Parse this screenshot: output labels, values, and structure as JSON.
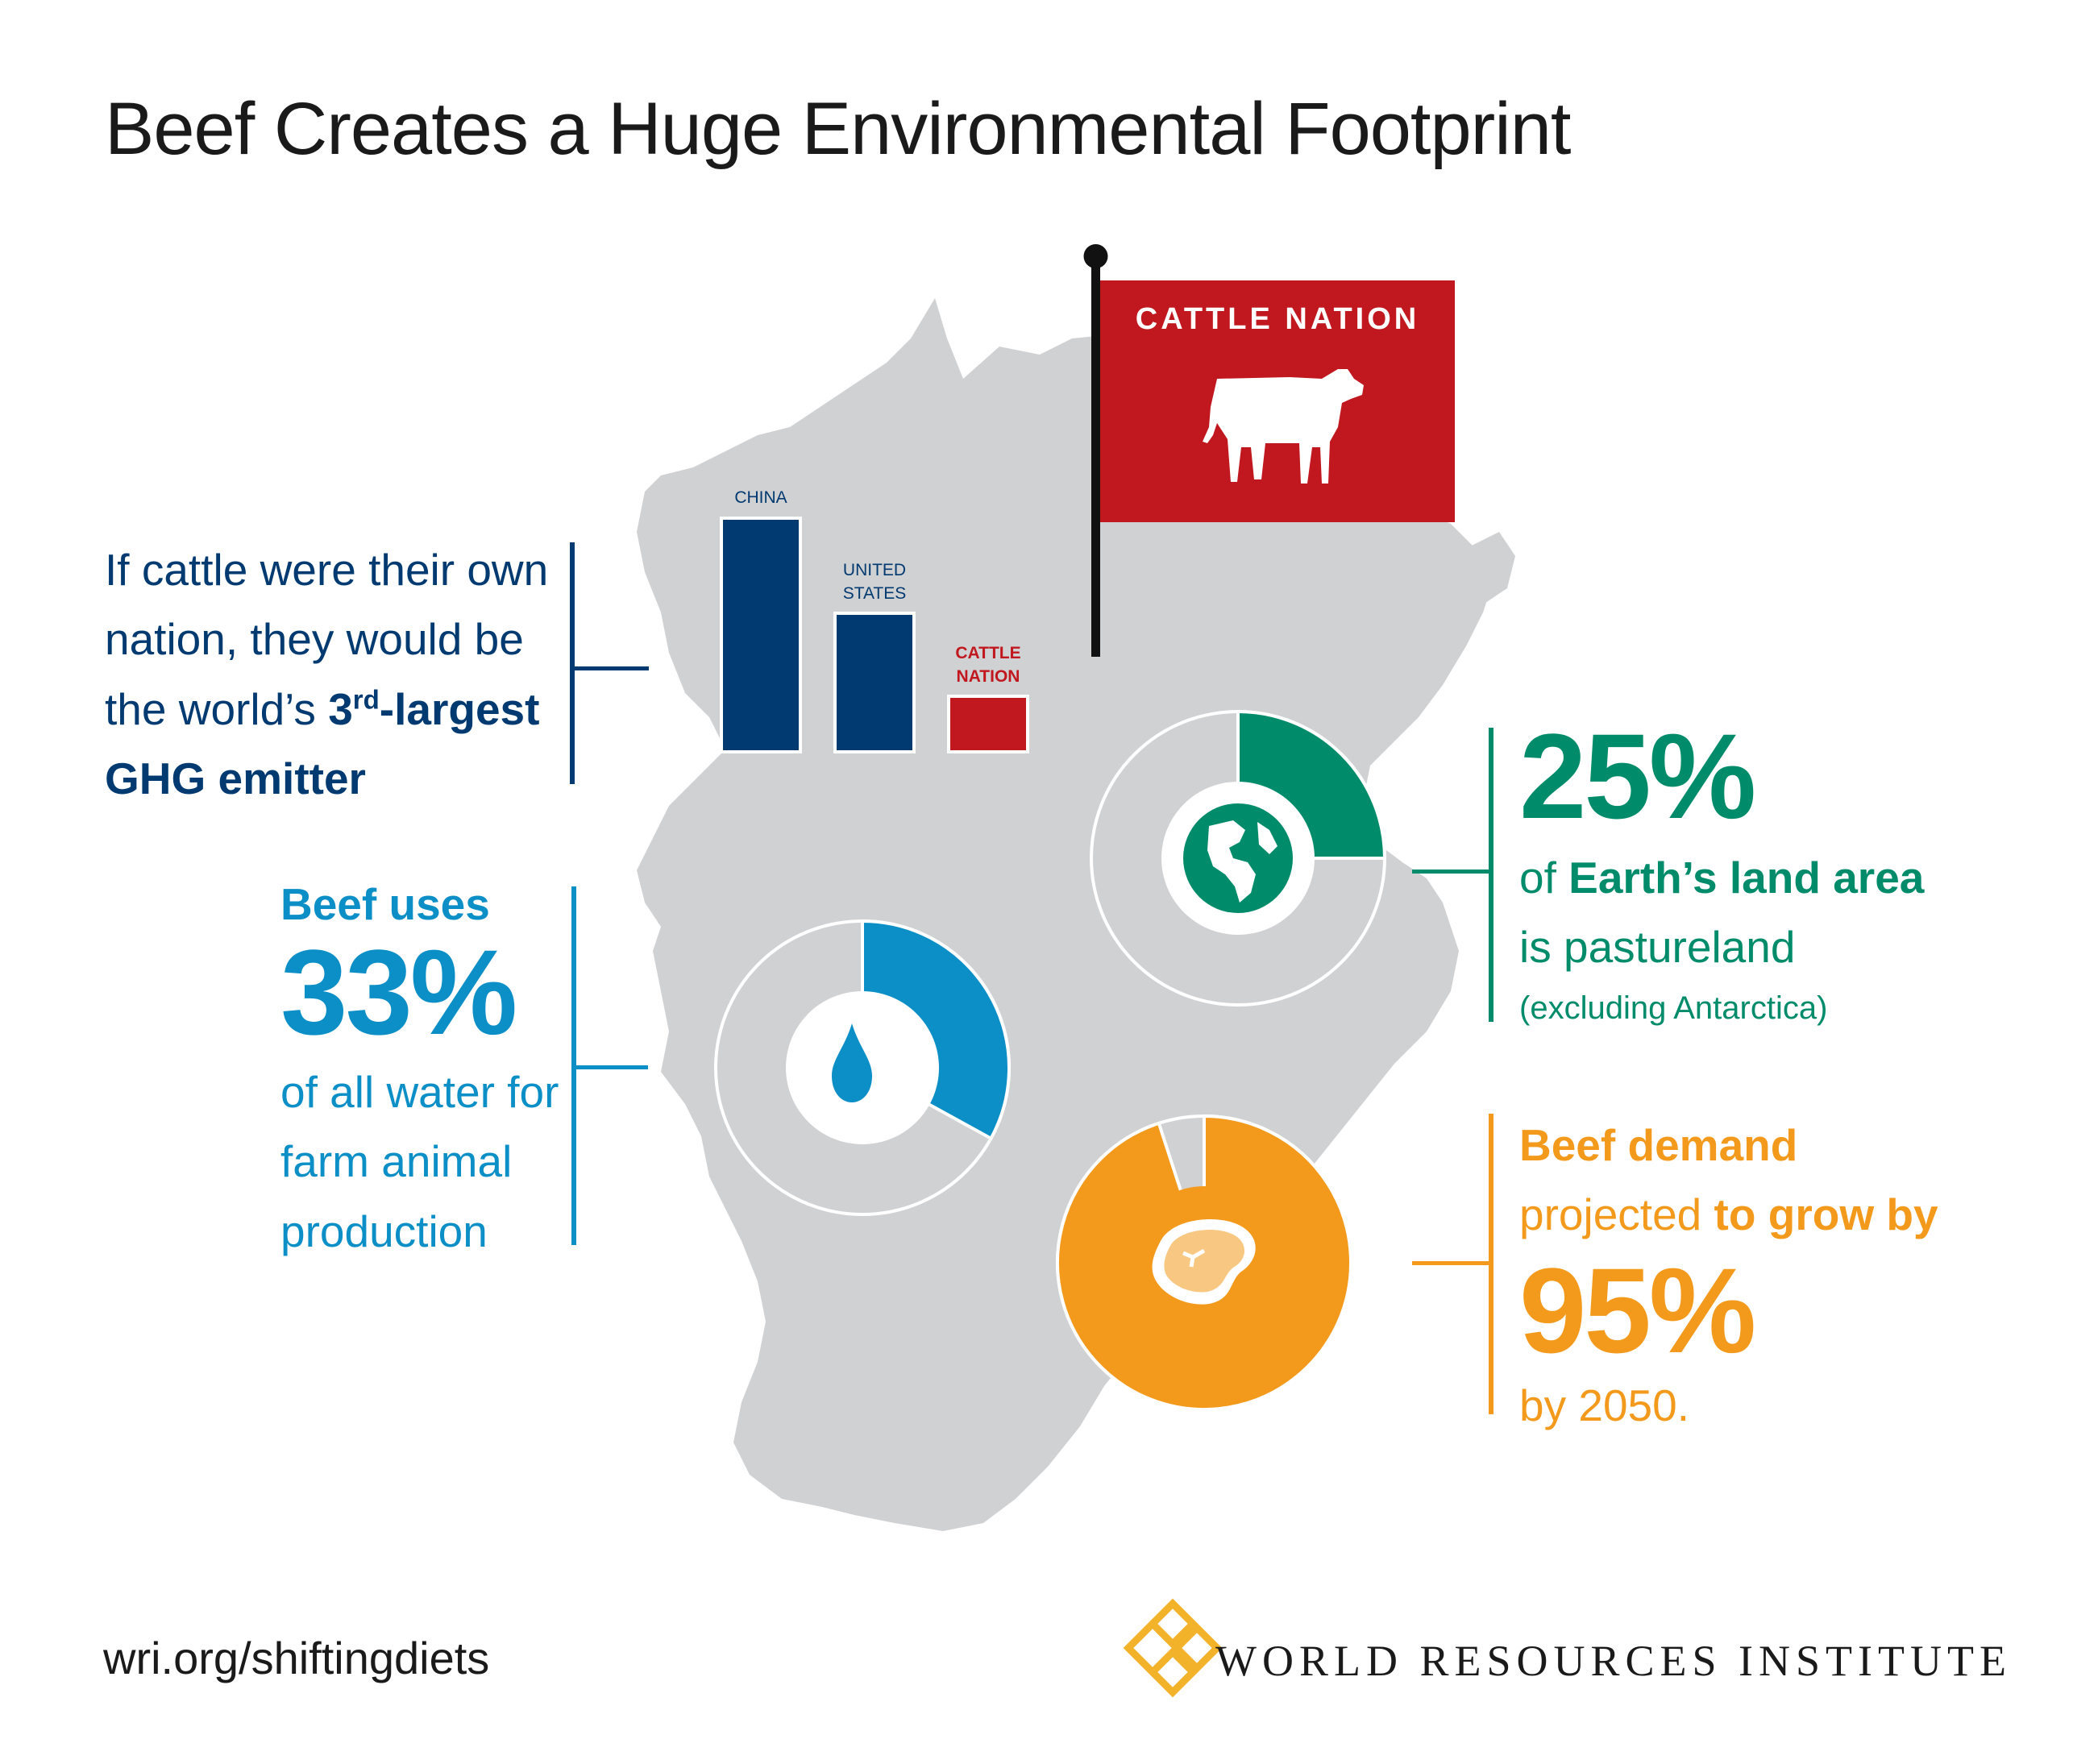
{
  "title": "Beef Creates a Huge Environmental Footprint",
  "colors": {
    "map": "#d0d1d3",
    "navy": "#003a70",
    "red": "#c1181f",
    "blue": "#0c8fc7",
    "green": "#008c6a",
    "orange": "#f39a1d"
  },
  "flag": {
    "label": "CATTLE NATION",
    "icon": "cow-icon"
  },
  "emissions": {
    "line1": "If cattle were their own",
    "line2": "nation, they would be",
    "line3_pre": "the world’s ",
    "rank_num": "3",
    "rank_sup": "rd",
    "rank_post": "-largest",
    "line4": "GHG emitter",
    "bars": [
      {
        "label_line1": "CHINA",
        "label_line2": ""
      },
      {
        "label_line1": "UNITED",
        "label_line2": "STATES"
      },
      {
        "label_line1": "CATTLE",
        "label_line2": "NATION"
      }
    ]
  },
  "water": {
    "head": "Beef uses",
    "value": "33%",
    "line1": "of all water for",
    "line2": "farm animal",
    "line3": "production",
    "fraction": 0.33,
    "icon": "water-drop-icon"
  },
  "land": {
    "value": "25%",
    "pre": "of ",
    "bold": "Earth’s land area",
    "line2": "is pastureland",
    "line3": "(excluding Antarctica)",
    "fraction": 0.25,
    "icon": "globe-icon"
  },
  "demand": {
    "head": "Beef demand",
    "pre": "projected ",
    "bold": "to grow by",
    "value": "95%",
    "tail": "by 2050.",
    "fraction": 0.95,
    "icon": "steak-icon"
  },
  "footer": {
    "url": "wri.org/shiftingdiets",
    "org": "WORLD RESOURCES INSTITUTE",
    "logo_icon": "wri-logo-icon"
  }
}
